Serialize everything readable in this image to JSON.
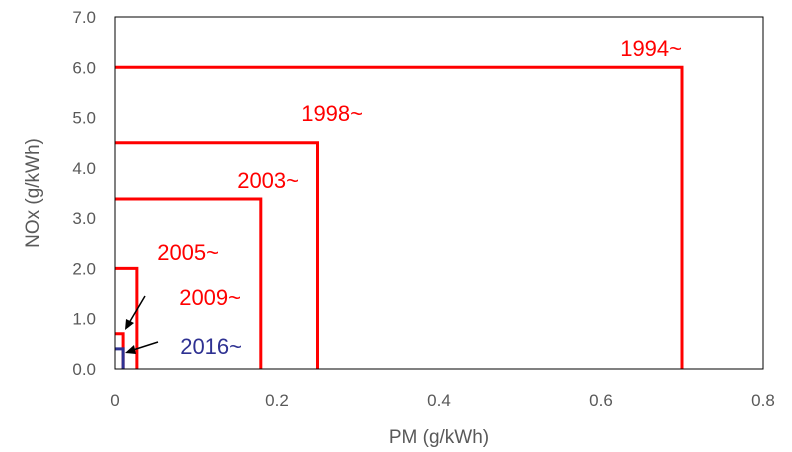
{
  "chart_data": {
    "type": "line",
    "title": "",
    "xlabel": "PM (g/kWh)",
    "ylabel": "NOx (g/kWh)",
    "xlim": [
      0,
      0.8
    ],
    "ylim": [
      0,
      7.0
    ],
    "xticks": [
      "0",
      "0.2",
      "0.4",
      "0.6",
      "0.8"
    ],
    "yticks": [
      "0.0",
      "1.0",
      "2.0",
      "3.0",
      "4.0",
      "5.0",
      "6.0",
      "7.0"
    ],
    "grid": false,
    "series": [
      {
        "name": "1994~",
        "pm": 0.7,
        "nox": 6.0,
        "color": "#ff0000"
      },
      {
        "name": "1998~",
        "pm": 0.25,
        "nox": 4.5,
        "color": "#ff0000"
      },
      {
        "name": "2003~",
        "pm": 0.18,
        "nox": 3.38,
        "color": "#ff0000"
      },
      {
        "name": "2005~",
        "pm": 0.027,
        "nox": 2.0,
        "color": "#ff0000"
      },
      {
        "name": "2009~",
        "pm": 0.01,
        "nox": 0.7,
        "color": "#ff0000"
      },
      {
        "name": "2016~",
        "pm": 0.01,
        "nox": 0.4,
        "color": "#2e3192"
      }
    ]
  }
}
